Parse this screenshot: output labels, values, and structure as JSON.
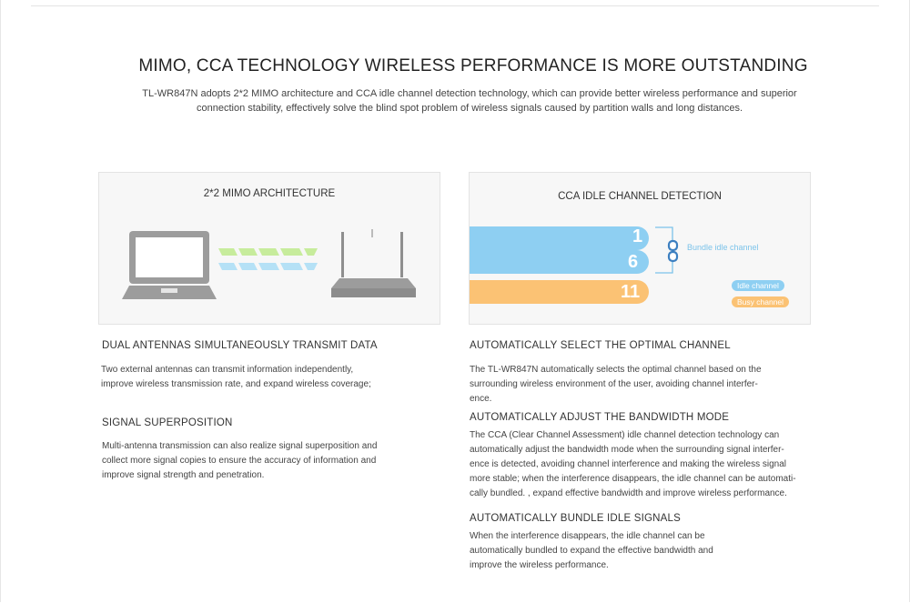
{
  "headline": "MIMO, CCA TECHNOLOGY WIRELESS PERFORMANCE IS MORE OUTSTANDING",
  "intro": [
    "TL-WR847N adopts 2*2 MIMO architecture and CCA idle channel detection technology, which can provide better wireless performance and superior",
    "connection stability, effectively solve the blind spot problem of wireless signals caused by partition walls and long distances."
  ],
  "mimo_panel": {
    "title": "2*2 MIMO ARCHITECTURE"
  },
  "cca_panel": {
    "title": "CCA IDLE CHANNEL DETECTION",
    "channels": [
      "1",
      "6",
      "11"
    ],
    "bundle_label": "Bundle idle channel",
    "legend_idle": "Idle channel",
    "legend_busy": "Busy channel",
    "colors": {
      "idle": "#8ecff2",
      "busy": "#fbc274"
    }
  },
  "left_sections": [
    {
      "title": "DUAL ANTENNAS SIMULTANEOUSLY TRANSMIT DATA",
      "lines": [
        "Two external antennas can transmit information independently,",
        "improve wireless transmission rate, and expand wireless coverage;"
      ]
    },
    {
      "title": "SIGNAL SUPERPOSITION",
      "lines": [
        "Multi-antenna transmission can also realize signal superposition and",
        "collect more signal copies to ensure the accuracy of information and",
        "improve signal strength and penetration."
      ]
    }
  ],
  "right_sections": [
    {
      "title": "AUTOMATICALLY SELECT THE OPTIMAL CHANNEL",
      "lines": [
        "The TL-WR847N automatically selects the optimal channel based on the",
        "surrounding wireless environment of the user, avoiding channel interfer-",
        "ence."
      ]
    },
    {
      "title": "AUTOMATICALLY ADJUST THE BANDWIDTH MODE",
      "lines": [
        "The CCA (Clear Channel Assessment) idle channel detection technology can",
        "automatically adjust the bandwidth mode when the surrounding signal interfer-",
        "ence is detected, avoiding channel interference and making the wireless signal",
        "more stable; when the interference disappears, the idle channel can be automati-",
        "cally bundled. , expand effective bandwidth and improve wireless performance."
      ]
    },
    {
      "title": "AUTOMATICALLY BUNDLE IDLE SIGNALS",
      "lines": [
        "When the interference disappears, the idle channel can be",
        "automatically bundled to expand the effective bandwidth and",
        "improve the wireless performance."
      ]
    }
  ]
}
